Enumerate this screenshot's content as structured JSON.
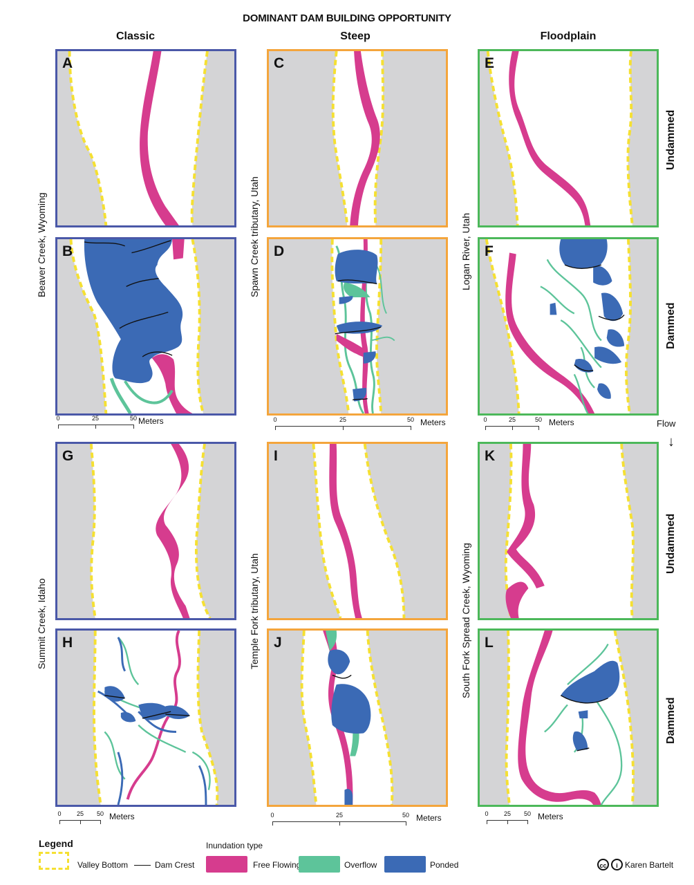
{
  "title": "DOMINANT DAM BUILDING OPPORTUNITY",
  "columns": [
    "Classic",
    "Steep",
    "Floodplain"
  ],
  "panels": {
    "A": "A",
    "B": "B",
    "C": "C",
    "D": "D",
    "E": "E",
    "F": "F",
    "G": "G",
    "H": "H",
    "I": "I",
    "J": "J",
    "K": "K",
    "L": "L"
  },
  "sites": {
    "classic_top": "Beaver Creek, Wyoming",
    "steep_top": "Spawn Creek tributary, Utah",
    "floodplain_top": "Logan River, Utah",
    "classic_bottom": "Summit Creek, Idaho",
    "steep_bottom": "Temple Fork tributary, Utah",
    "floodplain_bottom": "South Fork Spread Creek, Wyoming"
  },
  "rows": [
    "Undammed",
    "Dammed",
    "Undammed",
    "Dammed"
  ],
  "flow": "Flow",
  "scales": {
    "classic_top": [
      "0",
      "25",
      "50",
      "Meters"
    ],
    "steep_top": [
      "0",
      "25",
      "50",
      "Meters"
    ],
    "floodplain_top": [
      "0",
      "25",
      "50",
      "Meters"
    ],
    "classic_bottom": [
      "0",
      "25",
      "50",
      "Meters"
    ],
    "steep_bottom": [
      "0",
      "25",
      "50",
      "Meters"
    ],
    "floodplain_bottom": [
      "0",
      "25",
      "50",
      "Meters"
    ]
  },
  "legend": {
    "title": "Legend",
    "valley": "Valley Bottom",
    "dam": "Dam Crest",
    "inundation_title": "Inundation type",
    "free": "Free Flowing",
    "overflow": "Overflow",
    "ponded": "Ponded"
  },
  "credit": "Karen Bartelt",
  "colors": {
    "classic": "#4a58a8",
    "steep": "#f4a53c",
    "floodplain": "#4cb85a",
    "free": "#d63c8e",
    "overflow": "#5dc49a",
    "ponded": "#3b6ab5",
    "valley_edge": "#f5e032",
    "hillslope": "#d4d4d6"
  }
}
